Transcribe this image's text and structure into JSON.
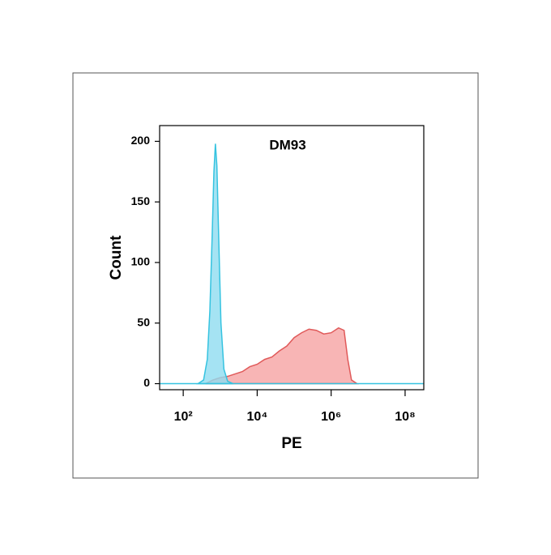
{
  "chart_data": {
    "type": "area",
    "title": "DM93",
    "x_label": "PE",
    "y_label": "Count",
    "log_x": true,
    "xlim": [
      23,
      320000000
    ],
    "ylim": [
      -5,
      213
    ],
    "xticks": [
      {
        "value": 100,
        "label": "10²"
      },
      {
        "value": 10000,
        "label": "10⁴"
      },
      {
        "value": 1000000,
        "label": "10⁶"
      },
      {
        "value": 100000000,
        "label": "10⁸"
      }
    ],
    "yticks": [
      0,
      50,
      100,
      150,
      200
    ],
    "series": [
      {
        "color": "#e05a5a",
        "fill": "#f6a3a3",
        "x": [
          398,
          631,
          1000,
          1585,
          2512,
          3981,
          6310,
          10000,
          15849,
          25119,
          39811,
          63096,
          100000,
          158489,
          251189,
          398107,
          630957,
          1000000,
          1584893,
          2238721,
          2818383,
          3548134,
          5011872
        ],
        "values": [
          0,
          3,
          5,
          6,
          8,
          10,
          14,
          16,
          20,
          22,
          27,
          31,
          38,
          42,
          45,
          44,
          41,
          42,
          46,
          44,
          20,
          3,
          0
        ]
      },
      {
        "color": "#35c3e0",
        "fill": "#8fdcf0",
        "x": [
          251,
          355,
          447,
          525,
          603,
          676,
          741,
          813,
          912,
          1047,
          1259,
          1585,
          2239
        ],
        "values": [
          0,
          3,
          20,
          60,
          120,
          175,
          198,
          180,
          120,
          50,
          12,
          2,
          0
        ]
      }
    ]
  }
}
